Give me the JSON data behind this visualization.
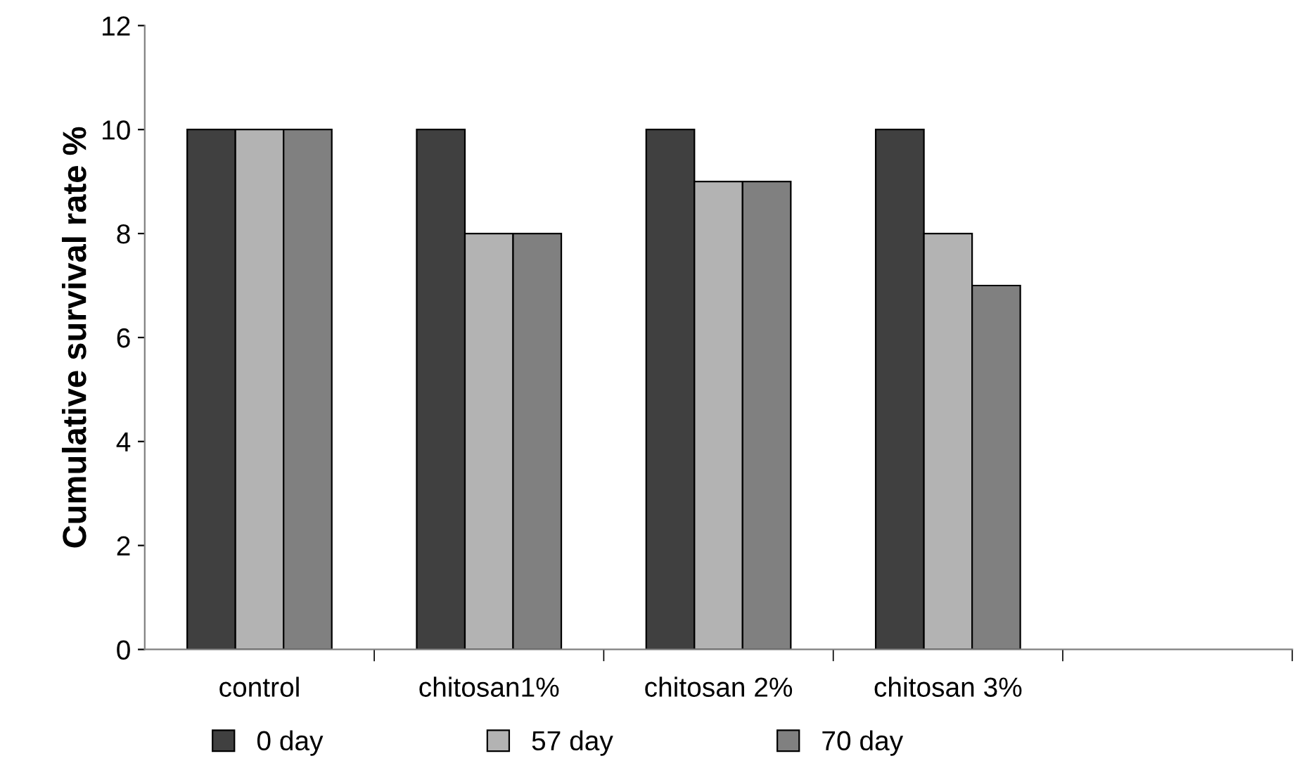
{
  "chart_data": {
    "type": "bar",
    "ylabel": "Cumulative survival rate %",
    "categories": [
      "control",
      "chitosan1%",
      "chitosan 2%",
      "chitosan 3%",
      null
    ],
    "series": [
      {
        "name": "0 day",
        "color": "#404040",
        "values": [
          10,
          10,
          10,
          10,
          null
        ]
      },
      {
        "name": "57 day",
        "color": "#b3b3b3",
        "values": [
          10,
          8,
          9,
          8,
          null
        ]
      },
      {
        "name": "70 day",
        "color": "#808080",
        "values": [
          10,
          8,
          9,
          7,
          null
        ]
      }
    ],
    "ylim": [
      0,
      12
    ],
    "yticks": [
      0,
      2,
      4,
      6,
      8,
      10,
      12
    ],
    "grid": false,
    "legend": "bottom"
  }
}
